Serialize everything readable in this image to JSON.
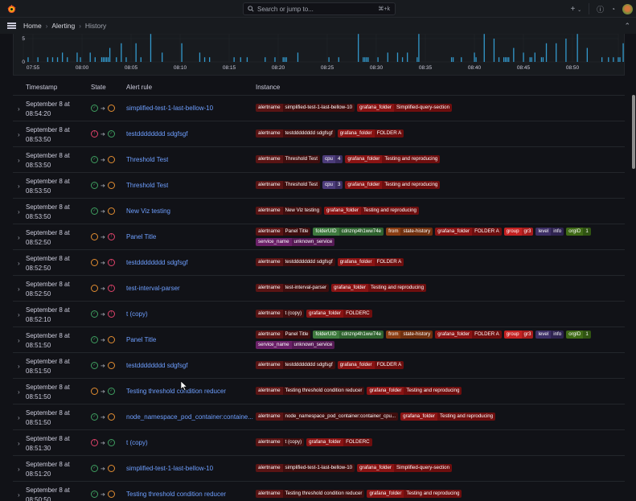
{
  "topbar": {
    "search_placeholder": "Search or jump to...",
    "search_shortcut": "⌘+k",
    "icons": [
      "grafana-logo",
      "search-icon",
      "plus-icon",
      "help-icon",
      "news-icon",
      "avatar"
    ]
  },
  "breadcrumb": {
    "items": [
      "Home",
      "Alerting",
      "History"
    ]
  },
  "chart_data": {
    "type": "bar",
    "title": "",
    "xlabel": "",
    "ylabel": "",
    "ylim": [
      0,
      6
    ],
    "yticks": [
      0,
      5
    ],
    "xticks": [
      "07:55",
      "08:00",
      "08:05",
      "08:10",
      "08:15",
      "08:20",
      "08:25",
      "08:30",
      "08:35",
      "08:40",
      "08:45",
      "08:50"
    ],
    "color": "#3399cc",
    "bars": [
      [
        "07:54:30",
        1
      ],
      [
        "07:55:30",
        1
      ],
      [
        "07:56:30",
        1
      ],
      [
        "07:57:00",
        1
      ],
      [
        "07:57:30",
        1
      ],
      [
        "07:58:00",
        2
      ],
      [
        "07:58:30",
        1
      ],
      [
        "07:59:30",
        2
      ],
      [
        "07:59:50",
        1
      ],
      [
        "08:00:50",
        2
      ],
      [
        "08:01:20",
        1
      ],
      [
        "08:02:00",
        1
      ],
      [
        "08:02:10",
        1
      ],
      [
        "08:02:20",
        1
      ],
      [
        "08:02:30",
        1
      ],
      [
        "08:02:40",
        1
      ],
      [
        "08:02:50",
        3
      ],
      [
        "08:03:30",
        1
      ],
      [
        "08:04:00",
        4
      ],
      [
        "08:04:30",
        1
      ],
      [
        "08:05:30",
        4
      ],
      [
        "08:06:00",
        1
      ],
      [
        "08:07:00",
        6
      ],
      [
        "08:08:10",
        2
      ],
      [
        "08:10:10",
        4
      ],
      [
        "08:12:00",
        2
      ],
      [
        "08:12:30",
        1
      ],
      [
        "08:13:00",
        1
      ],
      [
        "08:15:30",
        1
      ],
      [
        "08:16:10",
        1
      ],
      [
        "08:16:50",
        1
      ],
      [
        "08:18:40",
        1
      ],
      [
        "08:19:40",
        1
      ],
      [
        "08:20:30",
        1
      ],
      [
        "08:20:40",
        1
      ],
      [
        "08:20:50",
        1
      ],
      [
        "08:22:00",
        2
      ],
      [
        "08:25:10",
        1
      ],
      [
        "08:26:10",
        1
      ],
      [
        "08:28:10",
        6
      ],
      [
        "08:28:40",
        1
      ],
      [
        "08:28:50",
        1
      ],
      [
        "08:29:00",
        1
      ],
      [
        "08:29:10",
        1
      ],
      [
        "08:30:10",
        1
      ],
      [
        "08:31:10",
        2
      ],
      [
        "08:32:10",
        2
      ],
      [
        "08:32:40",
        1
      ],
      [
        "08:33:10",
        2
      ],
      [
        "08:34:10",
        1
      ],
      [
        "08:34:20",
        6
      ],
      [
        "08:37:40",
        1
      ],
      [
        "08:37:50",
        1
      ],
      [
        "08:38:40",
        1
      ],
      [
        "08:40:00",
        2
      ],
      [
        "08:40:10",
        1
      ],
      [
        "08:41:00",
        6
      ],
      [
        "08:42:00",
        5
      ],
      [
        "08:42:30",
        1
      ],
      [
        "08:43:00",
        1
      ],
      [
        "08:43:10",
        1
      ],
      [
        "08:43:20",
        1
      ],
      [
        "08:43:30",
        1
      ],
      [
        "08:44:00",
        3
      ],
      [
        "08:45:00",
        2
      ],
      [
        "08:45:40",
        1
      ],
      [
        "08:45:50",
        1
      ],
      [
        "08:46:10",
        2
      ],
      [
        "08:46:50",
        1
      ],
      [
        "08:47:00",
        1
      ],
      [
        "08:47:20",
        4
      ],
      [
        "08:48:20",
        4
      ],
      [
        "08:49:20",
        5
      ],
      [
        "08:50:30",
        6
      ],
      [
        "08:51:30",
        3
      ],
      [
        "08:53:00",
        1
      ],
      [
        "08:53:40",
        1
      ],
      [
        "08:54:10",
        1
      ],
      [
        "08:54:40",
        1
      ],
      [
        "08:54:50",
        1
      ],
      [
        "08:55:10",
        4
      ],
      [
        "08:55:30",
        1
      ],
      [
        "08:56:10",
        3
      ],
      [
        "08:57:10",
        4
      ],
      [
        "08:57:40",
        1
      ]
    ]
  },
  "table": {
    "columns": [
      "Timestamp",
      "State",
      "Alert rule",
      "Instance"
    ],
    "rows": [
      {
        "date": "September 8 at",
        "time": "08:54:20",
        "from": "normal",
        "to": "pending",
        "rule": "simplified-test-1-last-bellow-10",
        "labels": [
          [
            "alertname",
            "simplified-test-1-last-bellow-10",
            "#5a1414",
            "#3f0e0e"
          ],
          [
            "grafana_folder",
            "Simplified-query-section",
            "#8a1313",
            "#6e0e0e"
          ]
        ]
      },
      {
        "date": "September 8 at",
        "time": "08:53:50",
        "from": "alerting",
        "to": "normal",
        "rule": "testdddddddd sdgfsgf",
        "labels": [
          [
            "alertname",
            "testdddddddd sdgfsgf",
            "#5a1414",
            "#3f0e0e"
          ],
          [
            "grafana_folder",
            "FOLDER A",
            "#8a1313",
            "#6e0e0e"
          ]
        ]
      },
      {
        "date": "September 8 at",
        "time": "08:53:50",
        "from": "normal",
        "to": "pending",
        "rule": "Threshold Test",
        "labels": [
          [
            "alertname",
            "Threshold Test",
            "#5a1414",
            "#3f0e0e"
          ],
          [
            "cpu",
            "4",
            "#4c3c7a",
            "#3a2d60"
          ],
          [
            "grafana_folder",
            "Testing and reproducing",
            "#8a1313",
            "#6e0e0e"
          ]
        ]
      },
      {
        "date": "September 8 at",
        "time": "08:53:50",
        "from": "normal",
        "to": "pending",
        "rule": "Threshold Test",
        "labels": [
          [
            "alertname",
            "Threshold Test",
            "#5a1414",
            "#3f0e0e"
          ],
          [
            "cpu",
            "3",
            "#4c3c7a",
            "#3a2d60"
          ],
          [
            "grafana_folder",
            "Testing and reproducing",
            "#8a1313",
            "#6e0e0e"
          ]
        ]
      },
      {
        "date": "September 8 at",
        "time": "08:53:50",
        "from": "normal",
        "to": "pending",
        "rule": "New Viz testing",
        "labels": [
          [
            "alertname",
            "New Viz testing",
            "#5a1414",
            "#3f0e0e"
          ],
          [
            "grafana_folder",
            "Testing and reproducing",
            "#8a1313",
            "#6e0e0e"
          ]
        ]
      },
      {
        "date": "September 8 at",
        "time": "08:52:50",
        "from": "pending",
        "to": "alerting",
        "rule": "Panel Title",
        "wrap": true,
        "labels": [
          [
            "alertname",
            "Panel Title",
            "#5a1414",
            "#3f0e0e"
          ],
          [
            "folderUID",
            "cdnznp4h1ww74e",
            "#3e7a3e",
            "#2f632f"
          ],
          [
            "from",
            "state-history",
            "#8a3d12",
            "#70300e"
          ],
          [
            "grafana_folder",
            "FOLDER A",
            "#8a1313",
            "#6e0e0e"
          ],
          [
            "group",
            "gr3",
            "#c42222",
            "#a81c1c"
          ],
          [
            "level",
            "info",
            "#3d2f66",
            "#2e2350"
          ],
          [
            "orgID",
            "1",
            "#3f6a16",
            "#305412"
          ],
          [
            "service_name",
            "unknown_service",
            "#6a2068",
            "#551a54"
          ]
        ]
      },
      {
        "date": "September 8 at",
        "time": "08:52:50",
        "from": "pending",
        "to": "alerting",
        "rule": "testdddddddd sdgfsgf",
        "labels": [
          [
            "alertname",
            "testdddddddd sdgfsgf",
            "#5a1414",
            "#3f0e0e"
          ],
          [
            "grafana_folder",
            "FOLDER A",
            "#8a1313",
            "#6e0e0e"
          ]
        ]
      },
      {
        "date": "September 8 at",
        "time": "08:52:50",
        "from": "pending",
        "to": "alerting",
        "rule": "test-interval-parser",
        "labels": [
          [
            "alertname",
            "test-interval-parser",
            "#5a1414",
            "#3f0e0e"
          ],
          [
            "grafana_folder",
            "Testing and reproducing",
            "#8a1313",
            "#6e0e0e"
          ]
        ]
      },
      {
        "date": "September 8 at",
        "time": "08:52:10",
        "from": "normal",
        "to": "alerting",
        "rule": "t (copy)",
        "labels": [
          [
            "alertname",
            "t (copy)",
            "#5a1414",
            "#3f0e0e"
          ],
          [
            "grafana_folder",
            "FOLDERC",
            "#8a1313",
            "#6e0e0e"
          ]
        ]
      },
      {
        "date": "September 8 at",
        "time": "08:51:50",
        "from": "normal",
        "to": "pending",
        "rule": "Panel Title",
        "wrap": true,
        "labels": [
          [
            "alertname",
            "Panel Title",
            "#5a1414",
            "#3f0e0e"
          ],
          [
            "folderUID",
            "cdnznp4h1ww74e",
            "#3e7a3e",
            "#2f632f"
          ],
          [
            "from",
            "state-history",
            "#8a3d12",
            "#70300e"
          ],
          [
            "grafana_folder",
            "FOLDER A",
            "#8a1313",
            "#6e0e0e"
          ],
          [
            "group",
            "gr3",
            "#c42222",
            "#a81c1c"
          ],
          [
            "level",
            "info",
            "#3d2f66",
            "#2e2350"
          ],
          [
            "orgID",
            "1",
            "#3f6a16",
            "#305412"
          ],
          [
            "service_name",
            "unknown_service",
            "#6a2068",
            "#551a54"
          ]
        ]
      },
      {
        "date": "September 8 at",
        "time": "08:51:50",
        "from": "normal",
        "to": "pending",
        "rule": "testdddddddd sdgfsgf",
        "labels": [
          [
            "alertname",
            "testdddddddd sdgfsgf",
            "#5a1414",
            "#3f0e0e"
          ],
          [
            "grafana_folder",
            "FOLDER A",
            "#8a1313",
            "#6e0e0e"
          ]
        ]
      },
      {
        "date": "September 8 at",
        "time": "08:51:50",
        "from": "pending",
        "to": "normal",
        "rule": "Testing threshold condition reducer",
        "labels": [
          [
            "alertname",
            "Testing threshold condition reducer",
            "#5a1414",
            "#3f0e0e"
          ],
          [
            "grafana_folder",
            "Testing and reproducing",
            "#8a1313",
            "#6e0e0e"
          ]
        ]
      },
      {
        "date": "September 8 at",
        "time": "08:51:50",
        "from": "normal",
        "to": "pending",
        "rule": "node_namespace_pod_container:containe...",
        "labels": [
          [
            "alertname",
            "node_namespace_pod_container:container_cpu...",
            "#5a1414",
            "#3f0e0e"
          ],
          [
            "grafana_folder",
            "Testing and reproducing",
            "#8a1313",
            "#6e0e0e"
          ]
        ]
      },
      {
        "date": "September 8 at",
        "time": "08:51:30",
        "from": "alerting",
        "to": "normal",
        "rule": "t (copy)",
        "labels": [
          [
            "alertname",
            "t (copy)",
            "#5a1414",
            "#3f0e0e"
          ],
          [
            "grafana_folder",
            "FOLDERC",
            "#8a1313",
            "#6e0e0e"
          ]
        ]
      },
      {
        "date": "September 8 at",
        "time": "08:51:20",
        "from": "normal",
        "to": "pending",
        "rule": "simplified-test-1-last-bellow-10",
        "labels": [
          [
            "alertname",
            "simplified-test-1-last-bellow-10",
            "#5a1414",
            "#3f0e0e"
          ],
          [
            "grafana_folder",
            "Simplified-query-section",
            "#8a1313",
            "#6e0e0e"
          ]
        ]
      },
      {
        "date": "September 8 at",
        "time": "08:50:50",
        "from": "normal",
        "to": "pending",
        "rule": "Testing threshold condition reducer",
        "labels": [
          [
            "alertname",
            "Testing threshold condition reducer",
            "#5a1414",
            "#3f0e0e"
          ],
          [
            "grafana_folder",
            "Testing and reproducing",
            "#8a1313",
            "#6e0e0e"
          ]
        ]
      }
    ]
  }
}
